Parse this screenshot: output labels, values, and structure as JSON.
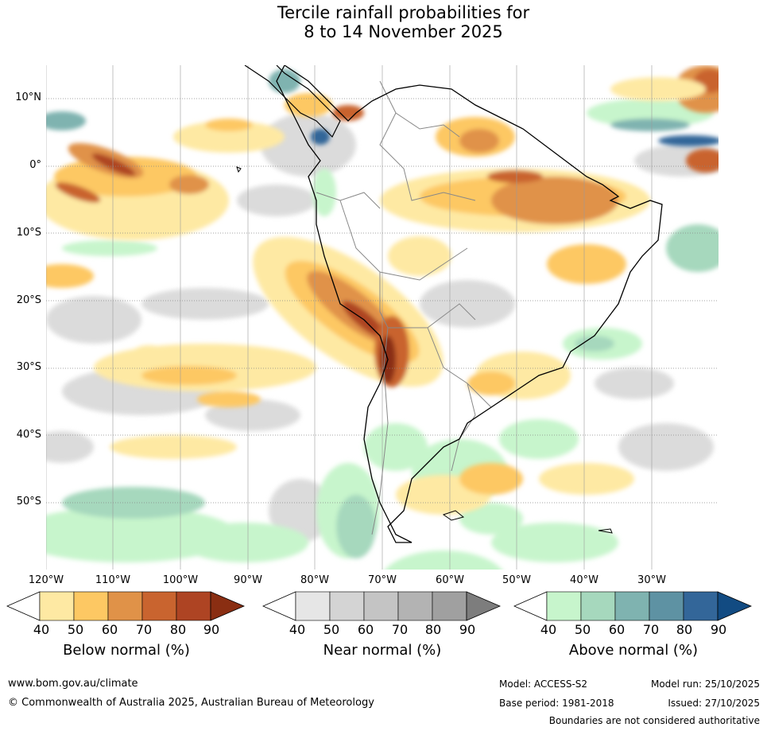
{
  "title": {
    "line1": "Tercile rainfall probabilities for",
    "line2": "8 to 14 November 2025"
  },
  "map": {
    "region": "South America and adjacent oceans",
    "lat_labels": [
      "10°N",
      "0°",
      "10°S",
      "20°S",
      "30°S",
      "40°S",
      "50°S"
    ],
    "lon_labels": [
      "120°W",
      "110°W",
      "100°W",
      "90°W",
      "80°W",
      "70°W",
      "60°W",
      "50°W",
      "40°W",
      "30°W"
    ]
  },
  "legends": [
    {
      "title": "Below normal (%)",
      "ticks": [
        "40",
        "50",
        "60",
        "70",
        "80",
        "90"
      ],
      "colors": [
        "#ffffff",
        "#fee9a3",
        "#fdc863",
        "#e09248",
        "#c9642f",
        "#ae4423",
        "#8a2e12"
      ]
    },
    {
      "title": "Near normal (%)",
      "ticks": [
        "40",
        "50",
        "60",
        "70",
        "80",
        "90"
      ],
      "colors": [
        "#ffffff",
        "#e6e6e6",
        "#d4d4d4",
        "#c4c4c4",
        "#b3b3b3",
        "#a0a0a0",
        "#7d7d7d"
      ]
    },
    {
      "title": "Above normal (%)",
      "ticks": [
        "40",
        "50",
        "60",
        "70",
        "80",
        "90"
      ],
      "colors": [
        "#ffffff",
        "#c7f5cc",
        "#a6d8bd",
        "#7fb3b0",
        "#5e92a3",
        "#336699",
        "#124b82"
      ]
    }
  ],
  "footer": {
    "url": "www.bom.gov.au/climate",
    "copyright": "© Commonwealth of Australia 2025, Australian Bureau of Meteorology",
    "model": "Model: ACCESS-S2",
    "base_period": "Base period: 1981-2018",
    "model_run": "Model run: 25/10/2025",
    "issued": "Issued: 27/10/2025",
    "disclaimer": "Boundaries are not considered authoritative"
  }
}
